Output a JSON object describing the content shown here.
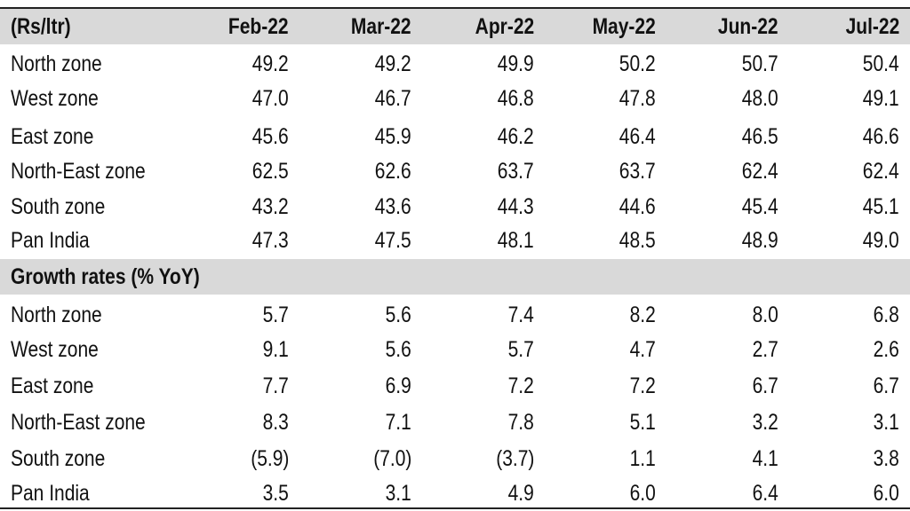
{
  "table": {
    "header": [
      "(Rs/ltr)",
      "Feb-22",
      "Mar-22",
      "Apr-22",
      "May-22",
      "Jun-22",
      "Jul-22"
    ],
    "rows": [
      [
        "North zone",
        "49.2",
        "49.2",
        "49.9",
        "50.2",
        "50.7",
        "50.4"
      ],
      [
        "West zone",
        "47.0",
        "46.7",
        "46.8",
        "47.8",
        "48.0",
        "49.1"
      ],
      [
        "East zone",
        "45.6",
        "45.9",
        "46.2",
        "46.4",
        "46.5",
        "46.6"
      ],
      [
        "North-East zone",
        "62.5",
        "62.6",
        "63.7",
        "63.7",
        "62.4",
        "62.4"
      ],
      [
        "South zone",
        "43.2",
        "43.6",
        "44.3",
        "44.6",
        "45.4",
        "45.1"
      ],
      [
        "Pan India",
        "47.3",
        "47.5",
        "48.1",
        "48.5",
        "48.9",
        "49.0"
      ]
    ],
    "section_title": "Growth rates (% YoY)",
    "growth_rows": [
      [
        "North zone",
        "5.7",
        "5.6",
        "7.4",
        "8.2",
        "8.0",
        "6.8"
      ],
      [
        "West zone",
        "9.1",
        "5.6",
        "5.7",
        "4.7",
        "2.7",
        "2.6"
      ],
      [
        "East zone",
        "7.7",
        "6.9",
        "7.2",
        "7.2",
        "6.7",
        "6.7"
      ],
      [
        "North-East zone",
        "8.3",
        "7.1",
        "7.8",
        "5.1",
        "3.2",
        "3.1"
      ],
      [
        "South zone",
        "(5.9)",
        "(7.0)",
        "(3.7)",
        "1.1",
        "4.1",
        "3.8"
      ],
      [
        "Pan India",
        "3.5",
        "3.1",
        "4.9",
        "6.0",
        "6.4",
        "6.0"
      ]
    ]
  }
}
